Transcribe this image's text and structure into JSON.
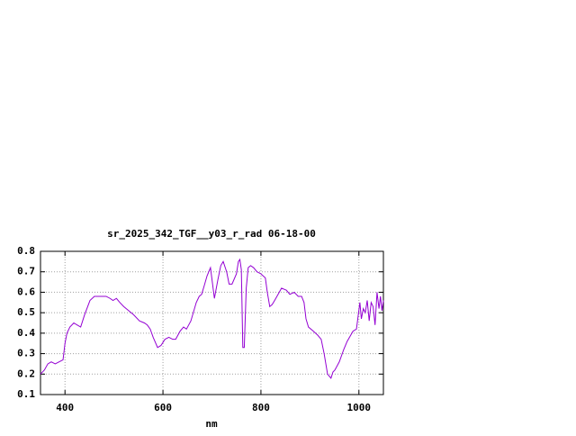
{
  "chart_data": {
    "type": "line",
    "title": "sr_2025_342_TGF__y03_r_rad 06-18-00",
    "x_label": "nm",
    "xlim": [
      350,
      1050
    ],
    "xticks": [
      400,
      600,
      800,
      1000
    ],
    "ylim": [
      0.1,
      0.8
    ],
    "yticks": [
      0.1,
      0.2,
      0.3,
      0.4,
      0.5,
      0.6,
      0.7,
      0.8
    ],
    "grid": true,
    "series": [
      {
        "color": "#9400d3",
        "x": [
          350,
          358,
          365,
          372,
          380,
          388,
          396,
          400,
          404,
          410,
          418,
          425,
          432,
          440,
          451,
          460,
          472,
          484,
          492,
          498,
          505,
          512,
          520,
          530,
          540,
          552,
          562,
          568,
          574,
          580,
          589,
          596,
          604,
          612,
          620,
          626,
          635,
          642,
          648,
          657,
          668,
          674,
          679,
          684,
          690,
          697,
          705,
          712,
          718,
          723,
          730,
          735,
          741,
          750,
          754,
          757,
          760,
          763,
          766,
          770,
          774,
          779,
          785,
          792,
          800,
          809,
          813,
          818,
          823,
          828,
          835,
          842,
          852,
          859,
          868,
          876,
          883,
          888,
          892,
          897,
          907,
          916,
          923,
          929,
          936,
          943,
          947,
          951,
          960,
          969,
          976,
          988,
          995,
          1002,
          1005,
          1009,
          1013,
          1017,
          1021,
          1025,
          1029,
          1033,
          1037,
          1041,
          1044,
          1047,
          1050
        ],
        "values": [
          0.2,
          0.22,
          0.25,
          0.26,
          0.25,
          0.26,
          0.27,
          0.35,
          0.4,
          0.43,
          0.45,
          0.44,
          0.43,
          0.49,
          0.56,
          0.58,
          0.58,
          0.58,
          0.57,
          0.56,
          0.57,
          0.55,
          0.53,
          0.51,
          0.49,
          0.46,
          0.45,
          0.44,
          0.42,
          0.38,
          0.33,
          0.34,
          0.37,
          0.38,
          0.37,
          0.37,
          0.41,
          0.43,
          0.42,
          0.46,
          0.55,
          0.58,
          0.59,
          0.63,
          0.68,
          0.72,
          0.57,
          0.66,
          0.73,
          0.75,
          0.7,
          0.64,
          0.64,
          0.69,
          0.75,
          0.76,
          0.71,
          0.33,
          0.33,
          0.62,
          0.72,
          0.73,
          0.72,
          0.7,
          0.69,
          0.67,
          0.6,
          0.53,
          0.54,
          0.56,
          0.59,
          0.62,
          0.61,
          0.59,
          0.6,
          0.58,
          0.58,
          0.55,
          0.47,
          0.43,
          0.41,
          0.39,
          0.37,
          0.3,
          0.2,
          0.18,
          0.21,
          0.22,
          0.26,
          0.32,
          0.36,
          0.41,
          0.42,
          0.55,
          0.47,
          0.52,
          0.5,
          0.56,
          0.46,
          0.55,
          0.53,
          0.44,
          0.6,
          0.52,
          0.58,
          0.51,
          0.56
        ]
      }
    ]
  }
}
